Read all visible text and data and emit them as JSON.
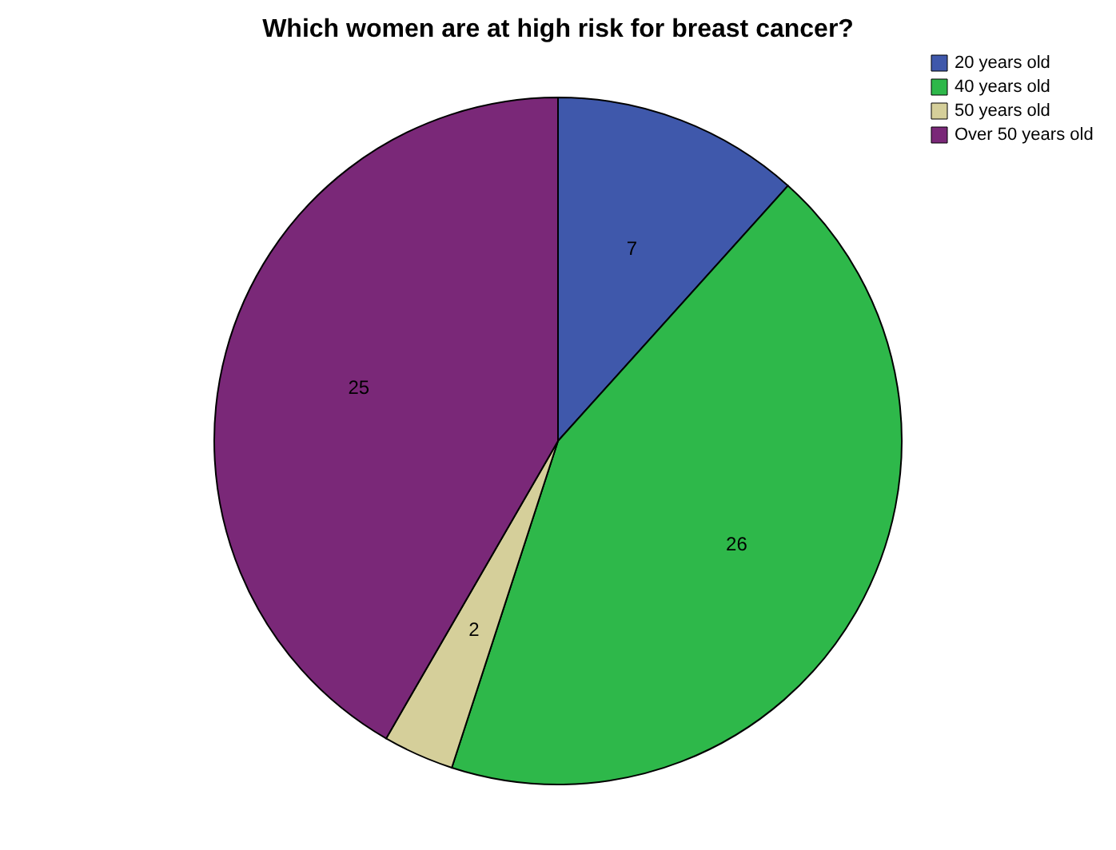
{
  "chart_data": {
    "type": "pie",
    "title": "Which women are at high risk for breast cancer?",
    "categories": [
      "20 years old",
      "40 years old",
      "50 years old",
      "Over 50 years old"
    ],
    "values": [
      7,
      26,
      2,
      25
    ],
    "colors": [
      "#3f58ab",
      "#2eb84a",
      "#d5cf9a",
      "#7a2878"
    ],
    "data_labels": true,
    "legend": "top right"
  }
}
